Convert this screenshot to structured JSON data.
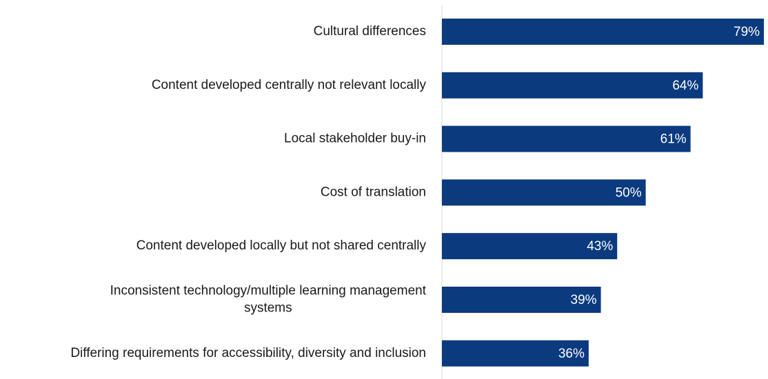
{
  "chart_data": {
    "type": "bar",
    "orientation": "horizontal",
    "categories": [
      "Cultural differences",
      "Content developed centrally not relevant locally",
      "Local stakeholder buy-in",
      "Cost of translation",
      "Content developed locally but not shared centrally",
      "Inconsistent technology/multiple learning management\nsystems",
      "Differing requirements for accessibility, diversity and inclusion"
    ],
    "values": [
      79,
      64,
      61,
      50,
      43,
      39,
      36
    ],
    "value_labels": [
      "79%",
      "64%",
      "61%",
      "50%",
      "43%",
      "39%",
      "36%"
    ],
    "color": "#0b3a7e",
    "xlim": [
      0,
      80
    ]
  }
}
